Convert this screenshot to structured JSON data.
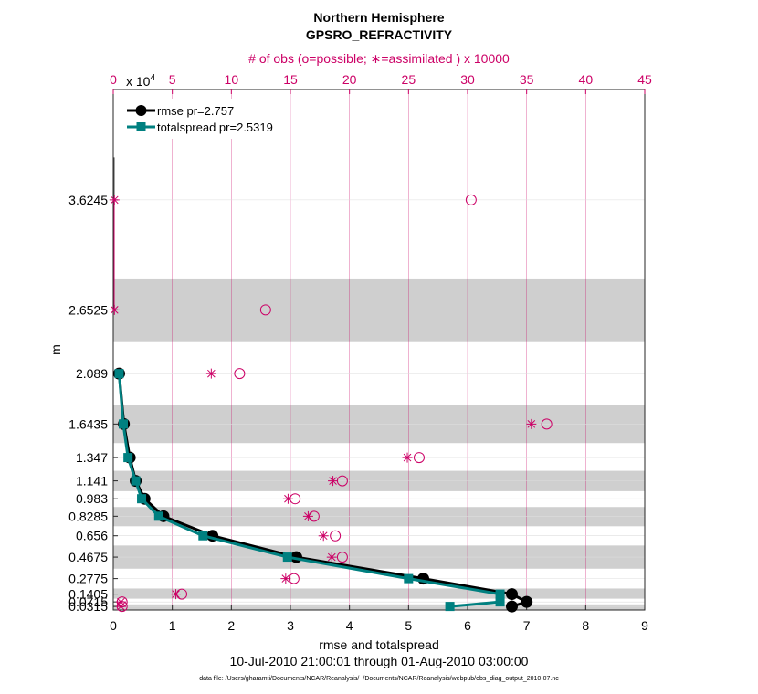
{
  "chart_data": {
    "type": "line",
    "title": "Northern Hemisphere",
    "subtitle": "GPSRO_REFRACTIVITY",
    "top_axis_label": "# of obs (o=possible; ∗=assimilated ) x 10000",
    "top_axis_exponent_base": "0",
    "top_axis_exponent_text": "x 10",
    "top_axis_exponent_power": "4",
    "xlabel": "rmse and totalspread",
    "ylabel": "m",
    "date_range": "10-Jul-2010 21:00:01 through 01-Aug-2010 03:00:00",
    "footnote": "data file: /Users/gharamti/Documents/NCAR/Reanalysis/~/Documents/NCAR/Reanalysis/webpub/obs_diag_output_2010-07.nc",
    "xlim": [
      0,
      9
    ],
    "top_xlim": [
      0,
      45
    ],
    "ylim": [
      0,
      46000
    ],
    "x_ticks": [
      "0",
      "1",
      "2",
      "3",
      "4",
      "5",
      "6",
      "7",
      "8",
      "9"
    ],
    "top_ticks": [
      "0",
      "5",
      "10",
      "15",
      "20",
      "25",
      "30",
      "35",
      "40",
      "45"
    ],
    "y_levels": [
      315,
      715,
      1405,
      2775,
      4675,
      6560,
      8285,
      9830,
      11410,
      13470,
      16435,
      20890,
      26525,
      36245
    ],
    "y_tick_labels": [
      "0.0315",
      "0.0715",
      "0.1405",
      "0.2775",
      "0.4675",
      "0.656",
      "0.8285",
      "0.983",
      "1.141",
      "1.347",
      "1.6435",
      "2.089",
      "2.6525",
      "3.6245"
    ],
    "bands": [
      [
        0,
        500
      ],
      [
        1000,
        1900
      ],
      [
        3650,
        5700
      ],
      [
        7400,
        9100
      ],
      [
        10500,
        12300
      ],
      [
        14750,
        18150
      ],
      [
        23750,
        29300
      ]
    ],
    "legend": [
      {
        "name": "rmse pr=2.757",
        "color": "#000000"
      },
      {
        "name": "totalspread pr=2.5319",
        "color": "#008080"
      }
    ],
    "series": [
      {
        "name": "rmse",
        "color": "#000000",
        "x": [
          6.75,
          7.0,
          6.75,
          5.25,
          3.1,
          1.68,
          0.85,
          0.53,
          0.38,
          0.28,
          0.18,
          0.1
        ],
        "y": [
          315,
          715,
          1405,
          2775,
          4675,
          6560,
          8285,
          9830,
          11410,
          13470,
          16435,
          20890
        ]
      },
      {
        "name": "totalspread",
        "color": "#008080",
        "x": [
          5.7,
          6.55,
          6.55,
          5.0,
          2.95,
          1.52,
          0.77,
          0.48,
          0.38,
          0.25,
          0.17,
          0.1
        ],
        "y": [
          315,
          715,
          1405,
          2775,
          4675,
          6560,
          8285,
          9830,
          11410,
          13470,
          16435,
          20890
        ]
      }
    ],
    "obs_possible": {
      "x": [
        0.75,
        0.75,
        5.8,
        15.3,
        19.4,
        18.8,
        17.0,
        15.4,
        19.4,
        25.9,
        36.7,
        10.7,
        12.9,
        30.3
      ],
      "y": [
        315,
        715,
        1405,
        2775,
        4675,
        6560,
        8285,
        9830,
        11410,
        13470,
        16435,
        20890,
        26525,
        36245
      ]
    },
    "obs_assimilated": {
      "x": [
        0.65,
        0.65,
        5.3,
        14.6,
        18.5,
        17.8,
        16.5,
        14.8,
        18.6,
        24.9,
        35.4,
        8.3,
        0.1,
        0.1
      ],
      "y": [
        315,
        715,
        1405,
        2775,
        4675,
        6560,
        8285,
        9830,
        11410,
        13470,
        16435,
        20890,
        26525,
        36245
      ]
    },
    "grid": true,
    "legend_position": "top-left"
  },
  "colors": {
    "obs": "#cc0066",
    "band": "#cfcfcf",
    "rmse": "#000000",
    "spread": "#008080"
  }
}
